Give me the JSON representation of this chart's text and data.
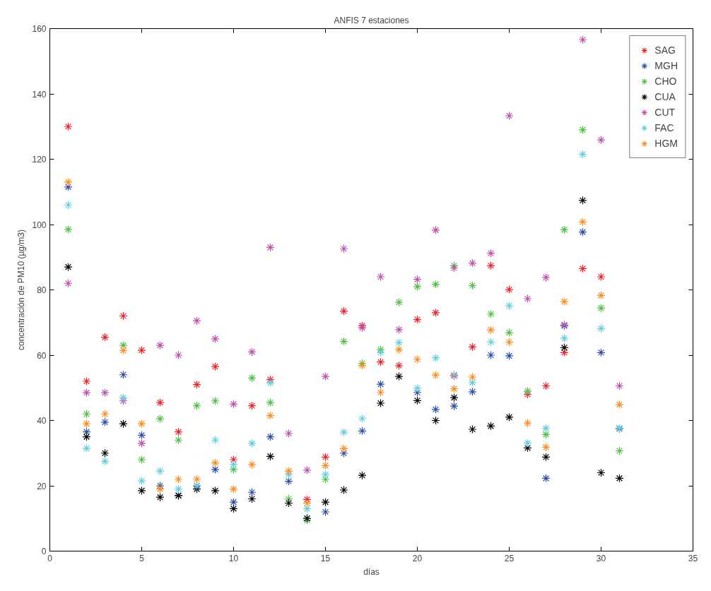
{
  "chart_data": {
    "type": "scatter",
    "title": "ANFIS 7 estaciones",
    "xlabel": "días",
    "ylabel": "concentración de PM10 (µg/m3)",
    "x": [
      1,
      2,
      3,
      4,
      5,
      6,
      7,
      8,
      9,
      10,
      11,
      12,
      13,
      14,
      15,
      16,
      17,
      18,
      19,
      20,
      21,
      22,
      23,
      24,
      25,
      26,
      27,
      28,
      29,
      30,
      31
    ],
    "series": [
      {
        "name": "SAG",
        "color": "#f0202a",
        "values": [
          130,
          52,
          65.5,
          72,
          61.5,
          45.5,
          36.5,
          51,
          56.5,
          28,
          44.5,
          52.5,
          null,
          15.8,
          28.8,
          73.5,
          69,
          57.9,
          56.8,
          70.9,
          73,
          53.7,
          62.5,
          87.4,
          80.1,
          48,
          50.6,
          60.8,
          86.5,
          84,
          null
        ]
      },
      {
        "name": "MGH",
        "color": "#2b4fa8",
        "values": [
          111.5,
          36.5,
          39.5,
          54,
          35.5,
          20,
          17,
          20,
          25,
          15,
          18,
          35,
          21.4,
          10,
          12,
          30,
          36.8,
          51.1,
          null,
          48.6,
          43.4,
          44.4,
          48.8,
          60,
          59.8,
          null,
          22.3,
          69,
          97.7,
          60.8,
          37.5
        ]
      },
      {
        "name": "CHO",
        "color": "#4fc142",
        "values": [
          98.5,
          42,
          null,
          63,
          28,
          40.5,
          34,
          44.5,
          46,
          25,
          53,
          45.5,
          16,
          9.5,
          22,
          64.2,
          57.5,
          61.7,
          76.2,
          81,
          81.7,
          87.4,
          81.3,
          72.6,
          66.9,
          49,
          35.7,
          98.4,
          129,
          74.4,
          30.7
        ]
      },
      {
        "name": "CUA",
        "color": "#000000",
        "values": [
          87,
          35,
          30,
          39,
          18.5,
          16.5,
          17,
          19,
          18.5,
          13,
          16,
          29,
          14.7,
          10,
          15,
          18.7,
          23.2,
          45.3,
          53.5,
          46.1,
          40,
          47,
          37.3,
          38.3,
          41,
          31.6,
          28.8,
          62.3,
          107.4,
          24,
          22.3
        ]
      },
      {
        "name": "CUT",
        "color": "#c050b0",
        "values": [
          82,
          48.5,
          48.5,
          46,
          33,
          63,
          60,
          70.5,
          65,
          45,
          61,
          93,
          36,
          24.8,
          53.5,
          92.6,
          68.4,
          84,
          67.8,
          83.2,
          98.3,
          86.7,
          88.2,
          91.2,
          133.3,
          77.3,
          83.8,
          69.3,
          156.6,
          125.9,
          50.6
        ]
      },
      {
        "name": "FAC",
        "color": "#5fcfe0",
        "values": [
          106,
          31.5,
          27.5,
          47,
          21.5,
          24.5,
          19,
          20,
          34,
          26.5,
          33,
          51.5,
          23.5,
          13,
          23.5,
          36.4,
          40.6,
          60.8,
          63.8,
          49.9,
          59.2,
          54,
          51.6,
          64,
          75.1,
          33.1,
          37.6,
          65.2,
          121.5,
          68.2,
          37.7
        ]
      },
      {
        "name": "HGM",
        "color": "#ff8c1a",
        "values": [
          113,
          39,
          42,
          61.5,
          39,
          19,
          22,
          22,
          27,
          19,
          26.5,
          41.5,
          24.5,
          14.7,
          26.2,
          31.4,
          56.8,
          48.6,
          61.7,
          58.7,
          53.9,
          49.7,
          53.3,
          67.7,
          64,
          39.2,
          31.8,
          76.4,
          100.8,
          78.3,
          44.9
        ]
      }
    ],
    "xlim": [
      0,
      35
    ],
    "xticks": [
      0,
      5,
      10,
      15,
      20,
      25,
      30,
      35
    ],
    "ylim": [
      0,
      160
    ],
    "yticks": [
      0,
      20,
      40,
      60,
      80,
      100,
      120,
      140,
      160
    ],
    "grid": false,
    "legend": "top right",
    "marker": "cross"
  }
}
